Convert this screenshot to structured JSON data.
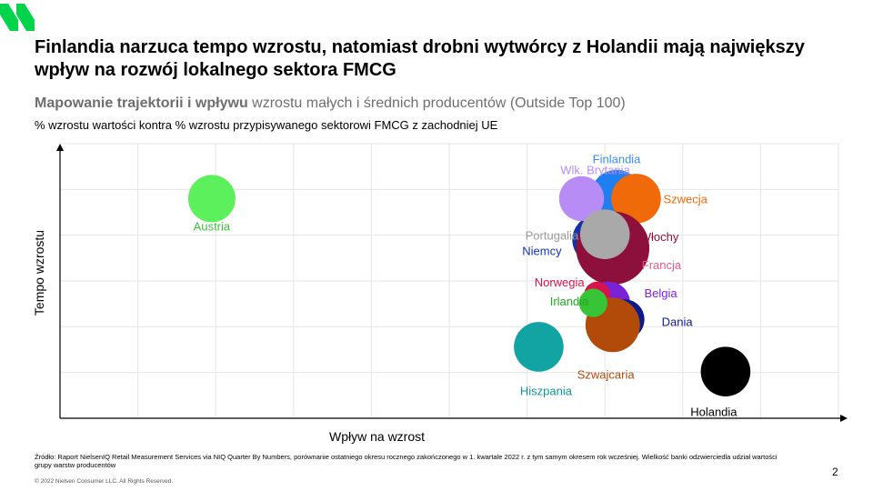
{
  "title": "Finlandia narzuca tempo wzrostu, natomiast drobni wytwórcy z Holandii mają największy wpływ na rozwój lokalnego sektora FMCG",
  "subtitle_bold": "Mapowanie trajektorii i wpływu",
  "subtitle_rest": " wzrostu małych i średnich producentów (Outside Top 100)",
  "subsubtitle": "% wzrostu wartości kontra % wzrostu przypisywanego sektorowi FMCG z zachodniej UE",
  "footer": {
    "source": "Źródło: Raport NielsenIQ Retail Measurement Services via NIQ Quarter By Numbers, porównanie ostatniego okresu rocznego zakończonego w 1. kwartale 2022 r. z tym samym okresem rok wcześniej. Wielkość banki odzwierciedla udział wartości grupy warstw producentów",
    "copyright": "© 2022 Nielsen Consumer LLC. All Rights Reserved.",
    "page": "2"
  },
  "colors": {
    "logo": "#00d44a",
    "axis": "#000000",
    "grid": "#e6e6e6"
  },
  "chart_data": {
    "type": "scatter",
    "xlabel": "Wpływ na wzrost",
    "ylabel": "Tempo wzrostu",
    "xlim": [
      0,
      100
    ],
    "ylim": [
      0,
      100
    ],
    "axis_ticks": "none",
    "grid": true,
    "points": [
      {
        "label": "Austria",
        "x": 19.5,
        "y": 80,
        "size": 1.0,
        "color": "#5cf05c",
        "label_color": "#3fbf3f"
      },
      {
        "label": "Hiszpania",
        "x": 61.5,
        "y": 26,
        "size": 1.05,
        "color": "#12a3a3",
        "label_color": "#0f9494"
      },
      {
        "label": "Holandia",
        "x": 85.5,
        "y": 17,
        "size": 1.05,
        "color": "#000000",
        "label_color": "#000000"
      },
      {
        "label": "Dania",
        "x": 72.5,
        "y": 36,
        "size": 0.85,
        "color": "#0e1a8c",
        "label_color": "#0e1a8c"
      },
      {
        "label": "Szwajcaria",
        "x": 71,
        "y": 34,
        "size": 1.15,
        "color": "#b24a0a",
        "label_color": "#b24a0a"
      },
      {
        "label": "Belgia",
        "x": 70.5,
        "y": 42,
        "size": 0.9,
        "color": "#7a22d8",
        "label_color": "#7a22d8"
      },
      {
        "label": "Irlandia",
        "x": 68.5,
        "y": 42,
        "size": 0.6,
        "color": "#37c437",
        "label_color": "#22aa22"
      },
      {
        "label": "Norwegia",
        "x": 69,
        "y": 45,
        "size": 0.55,
        "color": "#d8124a",
        "label_color": "#d8124a"
      },
      {
        "label": "Finlandia",
        "x": 71.5,
        "y": 81,
        "size": 1.1,
        "color": "#1f7ff0",
        "label_color": "#3b8ef0"
      },
      {
        "label": "Niemcy",
        "x": 69,
        "y": 65,
        "size": 1.05,
        "color": "#1433a8",
        "label_color": "#1433a8"
      },
      {
        "label": "Francja",
        "x": 71,
        "y": 59,
        "size": 1.0,
        "color": "#f05a8c",
        "label_color": "#e8588a"
      },
      {
        "label": "Włochy",
        "x": 71,
        "y": 62,
        "size": 1.55,
        "color": "#8c0f3c",
        "label_color": "#8c0f3c"
      },
      {
        "label": "Szwecja",
        "x": 74,
        "y": 80,
        "size": 1.05,
        "color": "#f06a0a",
        "label_color": "#e86a0a"
      },
      {
        "label": "Wlk. Brytania",
        "x": 67,
        "y": 80,
        "size": 0.95,
        "color": "#b88cf5",
        "label_color": "#b88cf5"
      },
      {
        "label": "Portugalia",
        "x": 70,
        "y": 67,
        "size": 1.05,
        "color": "#a9a9a9",
        "label_color": "#9b9b9b"
      }
    ]
  }
}
